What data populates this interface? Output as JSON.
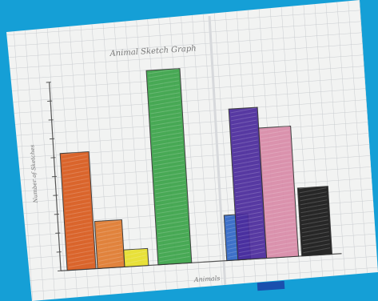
{
  "photo": {
    "background_color": "#159fd6",
    "paper_color": "#f2f3f2",
    "grid_color": "#c9ccd0"
  },
  "chart_data": {
    "type": "bar",
    "title": "Animal Sketch Graph",
    "xlabel": "Animals",
    "ylabel": "Number of Sketches",
    "ylim": [
      0,
      10
    ],
    "grid": true,
    "bars": [
      {
        "value": 6.2,
        "color": "#d95a1c"
      },
      {
        "value": 2.5,
        "color": "#e07a2e"
      },
      {
        "value": 0.9,
        "color": "#e8e02a"
      },
      {
        "value": 10.3,
        "color": "#3aa348"
      },
      {
        "value": 2.4,
        "color": "#2f66c6"
      },
      {
        "value": 8.0,
        "color": "#4a2a9c"
      },
      {
        "value": 6.9,
        "color": "#d98aa8"
      },
      {
        "value": 3.6,
        "color": "#161616"
      }
    ]
  }
}
